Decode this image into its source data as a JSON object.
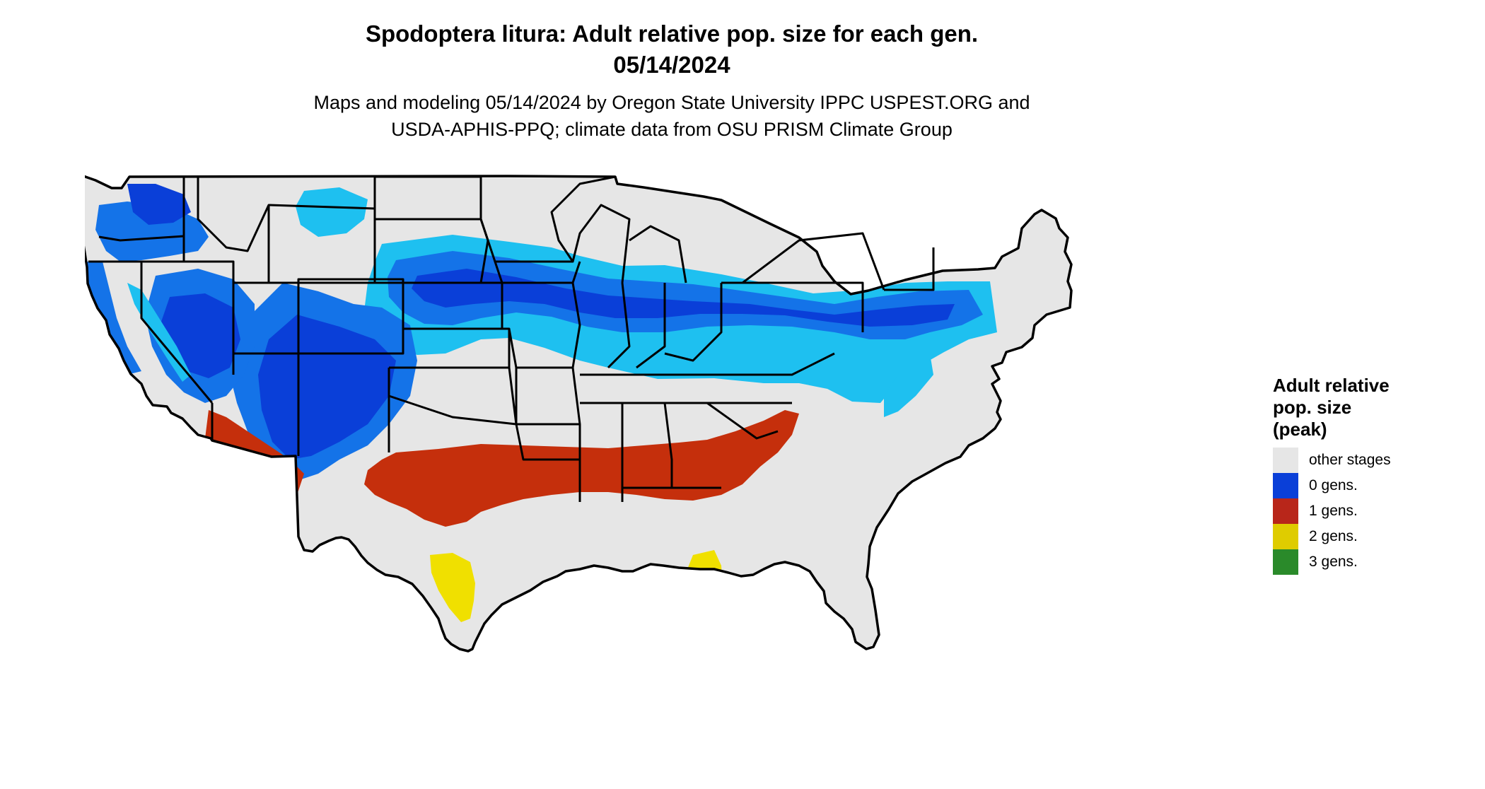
{
  "title": {
    "line1": "Spodoptera litura: Adult relative pop. size for each gen.",
    "line2": "05/14/2024"
  },
  "subtitle": {
    "line1": "Maps and modeling 05/14/2024 by Oregon State University IPPC USPEST.ORG and",
    "line2": "USDA-APHIS-PPQ; climate data from OSU PRISM Climate Group"
  },
  "legend": {
    "title_lines": [
      "Adult relative",
      "pop. size",
      "(peak)"
    ],
    "items": [
      {
        "label": "other stages",
        "color": "#e6e6e6"
      },
      {
        "label": "0 gens.",
        "color": "#0a3fd8"
      },
      {
        "label": "1 gens.",
        "color": "#b8261a"
      },
      {
        "label": "2 gens.",
        "color": "#dfcc00"
      },
      {
        "label": "3 gens.",
        "color": "#2a8a2a"
      }
    ]
  },
  "colors": {
    "land": "#e6e6e6",
    "light_blue": "#1ec0f0",
    "mid_blue": "#1473e8",
    "deep_blue": "#0a3fd8",
    "red": "#c52f0c",
    "yellow": "#f0e000",
    "green": "#2a8a2a",
    "border": "#000000"
  }
}
